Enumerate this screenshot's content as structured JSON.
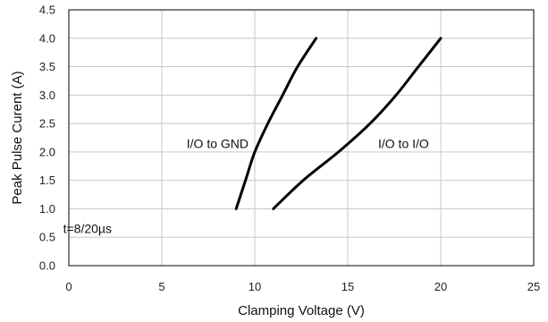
{
  "chart_data": {
    "type": "line",
    "xlabel": "Clamping Voltage (V)",
    "ylabel": "Peak  Pulse Curent (A)",
    "xlim": [
      0,
      25
    ],
    "ylim": [
      0,
      4.5
    ],
    "xticks": [
      "0",
      "5",
      "10",
      "15",
      "20",
      "25"
    ],
    "yticks": [
      "0.0",
      "0.5",
      "1.0",
      "1.5",
      "2.0",
      "2.5",
      "3.0",
      "3.5",
      "4.0",
      "4.5"
    ],
    "grid": true,
    "series": [
      {
        "name": "I/O to GND",
        "x": [
          9.0,
          9.5,
          10.0,
          10.7,
          11.5,
          12.3,
          13.3
        ],
        "y": [
          1.0,
          1.5,
          2.0,
          2.5,
          3.0,
          3.5,
          4.0
        ]
      },
      {
        "name": "I/O to I/O",
        "x": [
          11.0,
          12.6,
          14.5,
          16.2,
          17.6,
          18.8,
          20.0
        ],
        "y": [
          1.0,
          1.5,
          2.0,
          2.5,
          3.0,
          3.5,
          4.0
        ]
      }
    ],
    "annotations": [
      {
        "text": "I/O to GND",
        "x": 8.0,
        "y": 2.15
      },
      {
        "text": "I/O to I/O",
        "x": 18.0,
        "y": 2.15
      },
      {
        "text": "t=8/20µs",
        "x": 1.0,
        "y": 0.65
      }
    ]
  }
}
